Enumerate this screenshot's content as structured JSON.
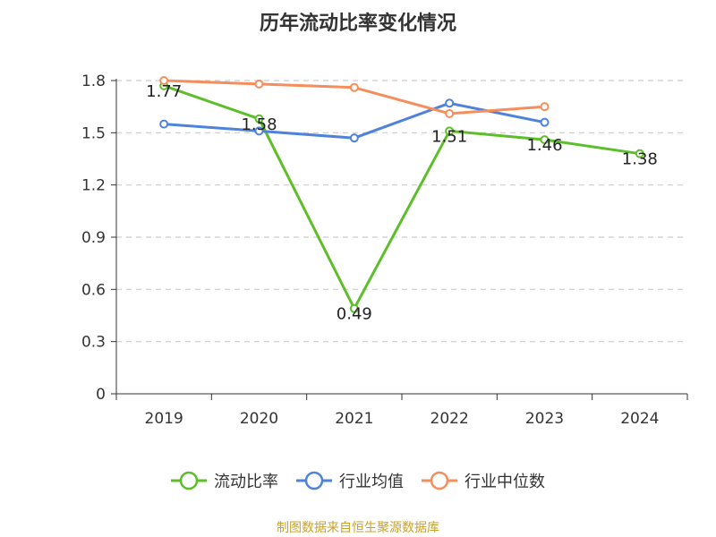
{
  "chart_data": {
    "type": "line",
    "title": "历年流动比率变化情况",
    "categories": [
      "2019",
      "2020",
      "2021",
      "2022",
      "2023",
      "2024"
    ],
    "ylim": [
      0,
      1.8
    ],
    "yticks": [
      "0",
      "0.3",
      "0.6",
      "0.9",
      "1.2",
      "1.5",
      "1.8"
    ],
    "grid": true,
    "legend_position": "bottom",
    "series": [
      {
        "name": "流动比率",
        "color": "#5cbf2a",
        "values": [
          1.77,
          1.58,
          0.49,
          1.51,
          1.46,
          1.38
        ],
        "labels": [
          "1.77",
          "1.58",
          "0.49",
          "1.51",
          "1.46",
          "1.38"
        ]
      },
      {
        "name": "行业均值",
        "color": "#4f82d9",
        "values": [
          1.55,
          1.51,
          1.47,
          1.67,
          1.56,
          null
        ]
      },
      {
        "name": "行业中位数",
        "color": "#f58d5c",
        "values": [
          1.8,
          1.78,
          1.76,
          1.61,
          1.65,
          null
        ]
      }
    ],
    "source": "制图数据来自恒生聚源数据库"
  }
}
